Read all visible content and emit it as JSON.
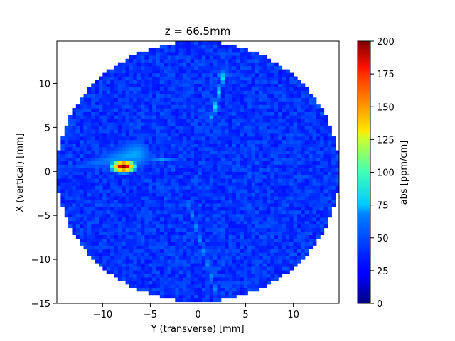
{
  "chart_data": {
    "type": "heatmap",
    "title": "z = 66.5mm",
    "xlabel": "Y (transverse) [mm]",
    "ylabel": "X (vertical) [mm]",
    "xlim": [
      -14.8,
      14.8
    ],
    "ylim": [
      -15,
      14.8
    ],
    "xticks": [
      -10,
      -5,
      0,
      5,
      10
    ],
    "yticks": [
      -15,
      -10,
      -5,
      0,
      5,
      10
    ],
    "aperture": {
      "shape": "circle",
      "center": [
        0,
        0
      ],
      "radius": 14.8
    },
    "colorbar": {
      "label": "abs [ppm/cm]",
      "range": [
        0,
        200
      ],
      "ticks": [
        0,
        25,
        50,
        75,
        100,
        125,
        150,
        175,
        200
      ],
      "colormap": "jet"
    },
    "background_level": 35,
    "features": [
      {
        "kind": "hotspot",
        "center": [
          -7.8,
          0.6
        ],
        "peak": 200
      },
      {
        "kind": "wedge",
        "from": [
          -14.5,
          0.1
        ],
        "to": [
          -6.5,
          2.0
        ],
        "level": 60
      },
      {
        "kind": "streak",
        "from": [
          -6.0,
          1.6
        ],
        "to": [
          -1.5,
          1.2
        ],
        "level": 55
      },
      {
        "kind": "streak",
        "from": [
          1.5,
          6.2
        ],
        "to": [
          2.8,
          11.5
        ],
        "level": 70
      },
      {
        "kind": "streak",
        "from": [
          -1.0,
          -3.5
        ],
        "to": [
          2.0,
          -14.0
        ],
        "level": 55
      },
      {
        "kind": "streak",
        "from": [
          10.8,
          4.2
        ],
        "to": [
          10.8,
          2.2
        ],
        "level": 20
      },
      {
        "kind": "streak",
        "from": [
          2.0,
          11.0
        ],
        "to": [
          5.5,
          10.8
        ],
        "level": 50
      }
    ]
  }
}
